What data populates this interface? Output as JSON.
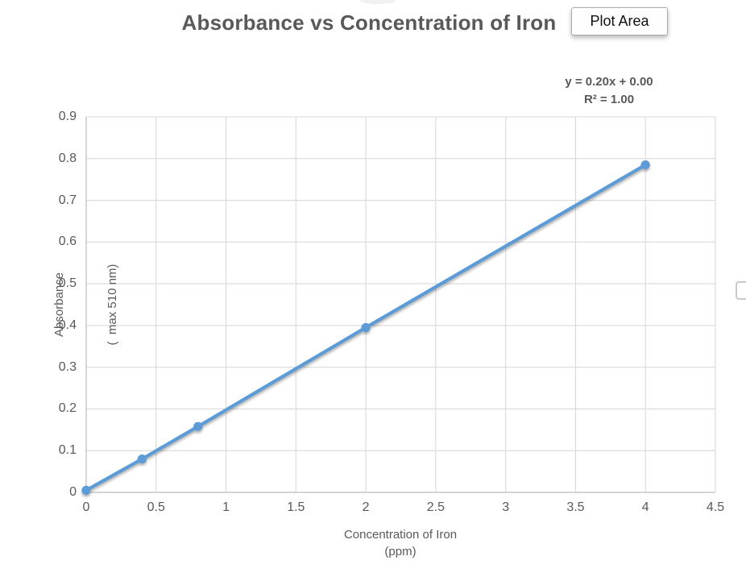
{
  "title": "Absorbance vs Concentration of Iron",
  "tooltip": {
    "label": "Plot Area"
  },
  "chart_data": {
    "type": "line",
    "title": "Absorbance vs Concentration of Iron",
    "x": [
      0,
      0.4,
      0.8,
      2,
      4
    ],
    "y": [
      0.005,
      0.08,
      0.158,
      0.395,
      0.785
    ],
    "trendline": {
      "equation": "y = 0.20x + 0.00",
      "r2": "R² = 1.00"
    },
    "xlabel": [
      "Concentration of Iron",
      "(ppm)"
    ],
    "ylabel": [
      "Absorbance",
      "(  max 510 nm)"
    ],
    "xlim": [
      0,
      4.5
    ],
    "ylim": [
      0,
      0.9
    ],
    "xticks": [
      0,
      0.5,
      1,
      1.5,
      2,
      2.5,
      3,
      3.5,
      4,
      4.5
    ],
    "xtick_labels": [
      "0",
      "0.5",
      "1",
      "1.5",
      "2",
      "2.5",
      "3",
      "3.5",
      "4",
      "4.5"
    ],
    "yticks": [
      0,
      0.1,
      0.2,
      0.3,
      0.4,
      0.5,
      0.6,
      0.7,
      0.8,
      0.9
    ],
    "ytick_labels": [
      "0",
      "0.1",
      "0.2",
      "0.3",
      "0.4",
      "0.5",
      "0.6",
      "0.7",
      "0.8",
      "0.9"
    ],
    "grid": true,
    "legend": "none",
    "marker": "circle",
    "colors": {
      "series": "#5B9BD5",
      "gridline": "#D9D9D9",
      "axis_line": "#C6C6C6",
      "text": "#595959",
      "title_text": "#595959",
      "tooltip_border": "#ABABAB"
    }
  }
}
